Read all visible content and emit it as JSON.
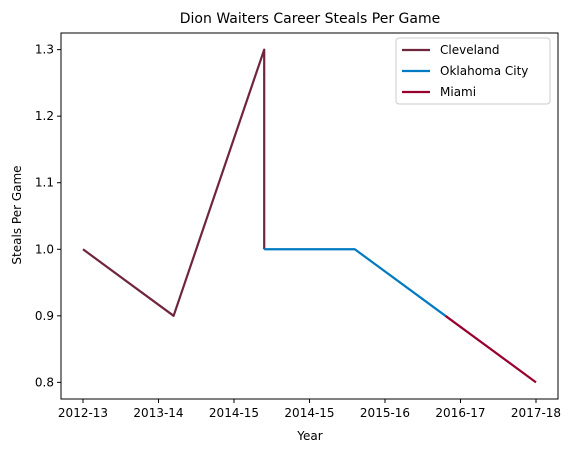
{
  "chart_data": {
    "type": "line",
    "title": "Dion Waiters Career Steals Per Game",
    "xlabel": "Year",
    "ylabel": "Steals Per Game",
    "categories": [
      "2012-13",
      "2013-14",
      "2014-15",
      "2014-15",
      "2015-16",
      "2016-17",
      "2017-18"
    ],
    "ylim": [
      0.775,
      1.325
    ],
    "yticks": [
      "0.8",
      "0.9",
      "1.0",
      "1.1",
      "1.2",
      "1.3"
    ],
    "grid": false,
    "legend_position": "top-right",
    "series": [
      {
        "name": "Cleveland",
        "color": "#6f263d",
        "x": [
          0,
          1,
          2,
          2
        ],
        "y": [
          1.0,
          0.9,
          1.3,
          1.0
        ]
      },
      {
        "name": "Oklahoma City",
        "color": "#007ac1",
        "x": [
          2,
          3,
          4
        ],
        "y": [
          1.0,
          1.0,
          0.9
        ]
      },
      {
        "name": "Miami",
        "color": "#98002e",
        "x": [
          4,
          5
        ],
        "y": [
          0.9,
          0.8
        ]
      }
    ]
  }
}
